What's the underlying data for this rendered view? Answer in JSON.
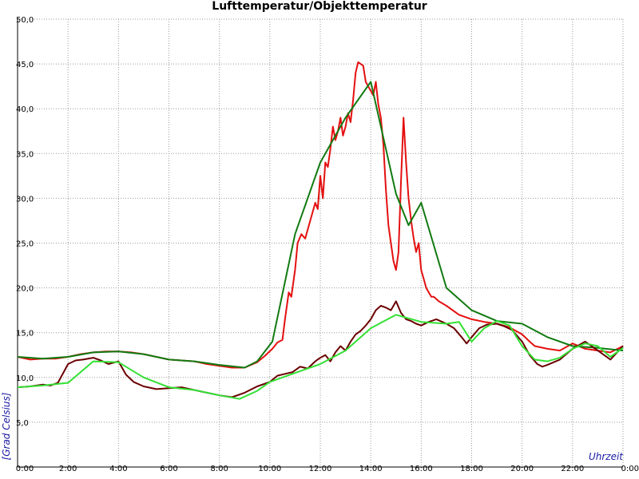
{
  "chart_data": {
    "type": "line",
    "title": "Lufttemperatur/Objekttemperatur",
    "ylabel": "[Grad Celsius]",
    "xlabel": "Uhrzeit",
    "ylim": [
      0,
      50
    ],
    "xlim": [
      0,
      24
    ],
    "grid": true,
    "y_ticks": [
      "5,0",
      "10,0",
      "15,0",
      "20,0",
      "25,0",
      "30,0",
      "35,0",
      "40,0",
      "45,0",
      "50,0"
    ],
    "x_ticks": [
      "0:00",
      "2:00",
      "4:00",
      "6:00",
      "8:00",
      "10:00",
      "12:00",
      "14:00",
      "16:00",
      "18:00",
      "20:00",
      "22:00",
      "0:00"
    ],
    "colors": {
      "air_raw": "#e41010",
      "air_smooth": "#117a11",
      "object_raw": "#6b0000",
      "object_smooth": "#33e033",
      "grid": "#9a9a9a"
    },
    "series": [
      {
        "key": "air_raw",
        "x": [
          0,
          0.5,
          1,
          1.5,
          2,
          2.5,
          3,
          3.5,
          4,
          4.5,
          5,
          5.5,
          6,
          6.5,
          7,
          7.5,
          8,
          8.5,
          9,
          9.5,
          9.8,
          10.1,
          10.3,
          10.5,
          10.6,
          10.75,
          10.85,
          11,
          11.1,
          11.25,
          11.4,
          11.6,
          11.8,
          11.9,
          12,
          12.1,
          12.2,
          12.3,
          12.4,
          12.5,
          12.6,
          12.7,
          12.8,
          12.9,
          13,
          13.1,
          13.2,
          13.3,
          13.4,
          13.5,
          13.6,
          13.7,
          13.8,
          13.9,
          14,
          14.1,
          14.2,
          14.3,
          14.4,
          14.5,
          14.6,
          14.7,
          14.8,
          14.9,
          15,
          15.1,
          15.2,
          15.3,
          15.4,
          15.5,
          15.6,
          15.7,
          15.8,
          15.9,
          16,
          16.1,
          16.2,
          16.3,
          16.4,
          16.5,
          16.7,
          17,
          17.5,
          18,
          18.5,
          19,
          19.5,
          20,
          20.3,
          20.5,
          21,
          21.5,
          22,
          22.5,
          23,
          23.5,
          24
        ],
        "y": [
          12.3,
          12.0,
          12.1,
          12.1,
          12.3,
          12.6,
          12.8,
          12.9,
          12.9,
          12.8,
          12.6,
          12.3,
          12.0,
          11.9,
          11.8,
          11.5,
          11.3,
          11.1,
          11.1,
          11.7,
          12.4,
          13.2,
          13.9,
          14.2,
          16.5,
          19.5,
          19.0,
          22.0,
          25.0,
          26.0,
          25.5,
          27.5,
          29.5,
          28.8,
          32.5,
          30.0,
          34.0,
          33.5,
          35.5,
          38.0,
          36.5,
          37.5,
          39.0,
          37.0,
          38.0,
          39.5,
          38.5,
          41.0,
          44.0,
          45.2,
          45.0,
          44.8,
          43.0,
          42.5,
          42.0,
          41.5,
          43.0,
          40.5,
          39.0,
          36.0,
          31.0,
          27.0,
          25.0,
          23.0,
          22.0,
          24.0,
          32.0,
          39.0,
          34.0,
          30.0,
          27.5,
          25.5,
          24.0,
          25.0,
          22.0,
          21.0,
          20.0,
          19.5,
          19.0,
          19.0,
          18.5,
          18.0,
          17.0,
          16.5,
          16.2,
          16.0,
          15.6,
          14.8,
          14.0,
          13.5,
          13.2,
          13.0,
          13.8,
          13.2,
          13.0,
          12.8,
          13.5
        ]
      },
      {
        "key": "air_smooth",
        "x": [
          0,
          1,
          2,
          3,
          4,
          5,
          6,
          7,
          8,
          9,
          9.5,
          10.1,
          11,
          12,
          13,
          14,
          15,
          15.5,
          16,
          17,
          18,
          19,
          20,
          21,
          22,
          23,
          24
        ],
        "y": [
          12.3,
          12.1,
          12.3,
          12.8,
          12.9,
          12.6,
          12.0,
          11.8,
          11.4,
          11.1,
          11.8,
          14.0,
          26.0,
          34.0,
          39.0,
          43.0,
          30.5,
          27.0,
          29.5,
          20.0,
          17.5,
          16.3,
          16.0,
          14.5,
          13.5,
          13.3,
          13.0
        ]
      },
      {
        "key": "object_raw",
        "x": [
          0,
          0.5,
          1,
          1.3,
          1.6,
          2,
          2.3,
          2.6,
          3,
          3.3,
          3.6,
          4,
          4.3,
          4.6,
          5,
          5.5,
          6,
          6.5,
          7,
          7.5,
          8,
          8.5,
          9,
          9.5,
          10,
          10.3,
          10.6,
          10.9,
          11.2,
          11.5,
          11.8,
          12.0,
          12.2,
          12.4,
          12.6,
          12.8,
          13.0,
          13.2,
          13.4,
          13.6,
          13.8,
          14.0,
          14.2,
          14.4,
          14.6,
          14.8,
          15.0,
          15.2,
          15.4,
          15.6,
          15.8,
          16,
          16.3,
          16.6,
          17,
          17.3,
          17.6,
          17.8,
          18,
          18.3,
          18.6,
          19,
          19.3,
          19.6,
          20,
          20.3,
          20.6,
          20.8,
          21,
          21.5,
          22,
          22.5,
          23,
          23.5,
          24
        ],
        "y": [
          8.9,
          9.0,
          9.2,
          9.1,
          9.4,
          11.5,
          11.9,
          12.0,
          12.2,
          11.9,
          11.5,
          11.8,
          10.3,
          9.5,
          9.0,
          8.7,
          8.8,
          8.9,
          8.6,
          8.3,
          8.0,
          7.8,
          8.3,
          9.0,
          9.5,
          10.2,
          10.4,
          10.6,
          11.2,
          11.0,
          11.8,
          12.2,
          12.5,
          11.8,
          12.8,
          13.5,
          13.0,
          14.0,
          14.8,
          15.2,
          15.8,
          16.5,
          17.5,
          18.0,
          17.8,
          17.5,
          18.5,
          17.2,
          16.5,
          16.3,
          16.0,
          15.8,
          16.2,
          16.5,
          16.0,
          15.5,
          14.5,
          13.8,
          14.5,
          15.5,
          15.9,
          16.0,
          15.7,
          15.3,
          14.0,
          12.5,
          11.5,
          11.2,
          11.4,
          12.0,
          13.2,
          14.0,
          13.0,
          12.0,
          13.5
        ]
      },
      {
        "key": "object_smooth",
        "x": [
          0,
          1,
          2,
          3,
          4,
          5,
          6,
          7,
          8,
          8.8,
          9.5,
          10,
          11,
          12,
          13,
          14,
          15,
          16,
          17,
          17.5,
          18,
          18.5,
          19,
          19.5,
          20,
          20.5,
          21,
          21.5,
          22,
          22.5,
          23,
          23.5,
          24
        ],
        "y": [
          8.9,
          9.1,
          9.4,
          11.8,
          11.7,
          10.0,
          8.9,
          8.6,
          8.0,
          7.6,
          8.5,
          9.5,
          10.5,
          11.5,
          13.0,
          15.5,
          17.0,
          16.2,
          16.0,
          16.2,
          14.0,
          15.5,
          16.3,
          15.8,
          13.5,
          12.0,
          11.8,
          12.2,
          13.2,
          13.8,
          13.5,
          12.3,
          13.3
        ]
      }
    ]
  }
}
